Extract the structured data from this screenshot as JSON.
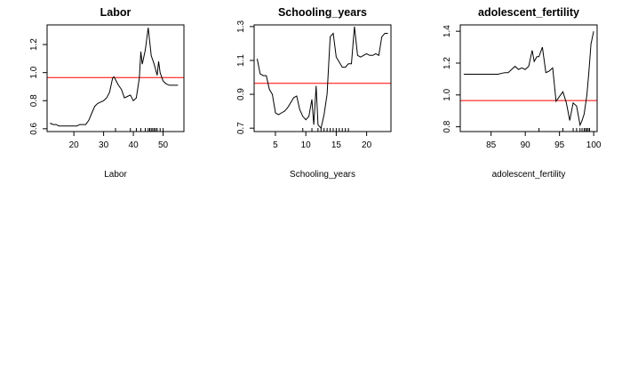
{
  "chart_data": [
    {
      "type": "line",
      "title": "Labor",
      "xlabel": "Labor",
      "ylabel": "",
      "xlim": [
        11,
        57
      ],
      "ylim": [
        0.58,
        1.34
      ],
      "xticks": [
        20,
        30,
        40,
        50
      ],
      "yticks": [
        0.6,
        0.8,
        1.0,
        1.2
      ],
      "xtick_labels": [
        "20",
        "30",
        "40",
        "50"
      ],
      "ytick_labels": [
        "0.6",
        "0.8",
        "1.0",
        "1.2"
      ],
      "reference_line": 0.965,
      "reference_color": "#ff0000",
      "line_color": "#000000",
      "rug": [
        34,
        39,
        41,
        42.5,
        44,
        45,
        45.5,
        46,
        46.5,
        47,
        47.5,
        48,
        49,
        50
      ],
      "series": [
        {
          "x": [
            12,
            13,
            14,
            15,
            16,
            17,
            18,
            19,
            20,
            21,
            22,
            23,
            24,
            25,
            26,
            27,
            28,
            29,
            30,
            31,
            32,
            33,
            33.5,
            34,
            35,
            36,
            37,
            38,
            39,
            40,
            41,
            42,
            42.5,
            43,
            44,
            45,
            45.5,
            46,
            47,
            48,
            48.5,
            49,
            50,
            51,
            52,
            53,
            54,
            55
          ],
          "y": [
            0.64,
            0.63,
            0.63,
            0.62,
            0.62,
            0.62,
            0.62,
            0.62,
            0.62,
            0.62,
            0.63,
            0.63,
            0.63,
            0.66,
            0.71,
            0.76,
            0.78,
            0.79,
            0.8,
            0.82,
            0.86,
            0.96,
            0.97,
            0.95,
            0.91,
            0.88,
            0.82,
            0.83,
            0.84,
            0.8,
            0.82,
            0.96,
            1.15,
            1.06,
            1.16,
            1.32,
            1.22,
            1.12,
            1.06,
            0.98,
            1.08,
            1.0,
            0.94,
            0.92,
            0.91,
            0.91,
            0.91,
            0.91
          ]
        }
      ]
    },
    {
      "type": "line",
      "title": "Schooling_years",
      "xlabel": "Schooling_years",
      "ylabel": "",
      "xlim": [
        1.5,
        24
      ],
      "ylim": [
        0.68,
        1.31
      ],
      "xticks": [
        5,
        10,
        15,
        20
      ],
      "yticks": [
        0.7,
        0.9,
        1.1,
        1.3
      ],
      "xtick_labels": [
        "5",
        "10",
        "15",
        "20"
      ],
      "ytick_labels": [
        "0.7",
        "0.9",
        "1.1",
        "1.3"
      ],
      "reference_line": 0.965,
      "reference_color": "#ff0000",
      "line_color": "#000000",
      "rug": [
        9.5,
        11,
        12,
        12.5,
        13,
        13.5,
        14,
        14.5,
        15,
        15.5,
        16,
        16.5,
        17
      ],
      "series": [
        {
          "x": [
            2.0,
            2.5,
            3.0,
            3.5,
            4.0,
            4.5,
            5.0,
            5.5,
            6.0,
            6.5,
            7.0,
            7.5,
            8.0,
            8.5,
            9.0,
            9.5,
            10.0,
            10.5,
            11.0,
            11.3,
            11.7,
            12.0,
            12.5,
            13.0,
            13.5,
            14.0,
            14.5,
            15.0,
            15.5,
            16.0,
            16.5,
            17.0,
            17.5,
            18.0,
            18.5,
            19.0,
            19.5,
            20.0,
            20.5,
            21.0,
            21.5,
            22.0,
            22.5,
            23.0,
            23.5
          ],
          "y": [
            1.11,
            1.02,
            1.01,
            1.01,
            0.93,
            0.9,
            0.79,
            0.78,
            0.79,
            0.8,
            0.82,
            0.85,
            0.88,
            0.89,
            0.81,
            0.77,
            0.75,
            0.77,
            0.87,
            0.72,
            0.95,
            0.72,
            0.7,
            0.78,
            0.9,
            1.24,
            1.26,
            1.12,
            1.09,
            1.06,
            1.06,
            1.08,
            1.08,
            1.3,
            1.13,
            1.12,
            1.13,
            1.14,
            1.13,
            1.13,
            1.14,
            1.13,
            1.24,
            1.26,
            1.26
          ]
        }
      ]
    },
    {
      "type": "line",
      "title": "adolescent_fertility",
      "xlabel": "adolescent_fertility",
      "ylabel": "",
      "xlim": [
        80.5,
        100.5
      ],
      "ylim": [
        0.77,
        1.44
      ],
      "xticks": [
        85,
        90,
        95,
        100
      ],
      "yticks": [
        0.8,
        1.0,
        1.2,
        1.4
      ],
      "xtick_labels": [
        "85",
        "90",
        "95",
        "100"
      ],
      "ytick_labels": [
        "0.8",
        "1.0",
        "1.2",
        "1.4"
      ],
      "reference_line": 0.965,
      "reference_color": "#ff0000",
      "line_color": "#000000",
      "rug": [
        92,
        95.5,
        97,
        97.5,
        98,
        98.3,
        98.6,
        98.8,
        99.0,
        99.2,
        99.4
      ],
      "series": [
        {
          "x": [
            81.0,
            82.0,
            83.0,
            84.0,
            85.0,
            86.0,
            87.0,
            87.5,
            88.0,
            88.5,
            89.0,
            89.5,
            90.0,
            90.5,
            91.0,
            91.3,
            91.7,
            92.0,
            92.5,
            93.0,
            93.5,
            94.0,
            94.5,
            95.0,
            95.5,
            96.0,
            96.5,
            97.0,
            97.5,
            98.0,
            98.3,
            98.6,
            99.0,
            99.3,
            99.6,
            100.0
          ],
          "y": [
            1.13,
            1.13,
            1.13,
            1.13,
            1.13,
            1.13,
            1.14,
            1.14,
            1.16,
            1.18,
            1.16,
            1.17,
            1.16,
            1.18,
            1.28,
            1.21,
            1.24,
            1.24,
            1.3,
            1.14,
            1.15,
            1.17,
            0.96,
            0.99,
            1.02,
            0.95,
            0.84,
            0.95,
            0.93,
            0.81,
            0.84,
            0.88,
            1.0,
            1.15,
            1.32,
            1.4
          ]
        }
      ]
    }
  ]
}
